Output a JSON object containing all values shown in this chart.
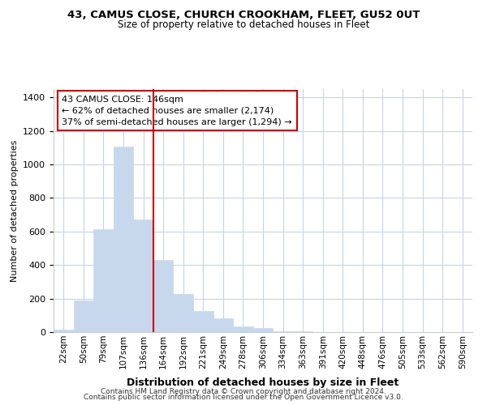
{
  "title": "43, CAMUS CLOSE, CHURCH CROOKHAM, FLEET, GU52 0UT",
  "subtitle": "Size of property relative to detached houses in Fleet",
  "xlabel": "Distribution of detached houses by size in Fleet",
  "ylabel": "Number of detached properties",
  "bar_labels": [
    "22sqm",
    "50sqm",
    "79sqm",
    "107sqm",
    "136sqm",
    "164sqm",
    "192sqm",
    "221sqm",
    "249sqm",
    "278sqm",
    "306sqm",
    "334sqm",
    "363sqm",
    "391sqm",
    "420sqm",
    "448sqm",
    "476sqm",
    "505sqm",
    "533sqm",
    "562sqm",
    "590sqm"
  ],
  "bar_heights": [
    15,
    190,
    615,
    1105,
    670,
    430,
    225,
    125,
    80,
    35,
    25,
    5,
    5,
    0,
    0,
    0,
    0,
    0,
    0,
    0,
    0
  ],
  "bar_color": "#c8d8ec",
  "bar_edge_color": "#c8d8ec",
  "highlight_line_index": 4,
  "highlight_line_color": "#cc0000",
  "annotation_text": "43 CAMUS CLOSE: 146sqm\n← 62% of detached houses are smaller (2,174)\n37% of semi-detached houses are larger (1,294) →",
  "annotation_box_color": "#ffffff",
  "annotation_box_edge_color": "#cc0000",
  "ylim": [
    0,
    1450
  ],
  "yticks": [
    0,
    200,
    400,
    600,
    800,
    1000,
    1200,
    1400
  ],
  "footer1": "Contains HM Land Registry data © Crown copyright and database right 2024.",
  "footer2": "Contains public sector information licensed under the Open Government Licence v3.0.",
  "background_color": "#ffffff",
  "grid_color": "#c8d4e4"
}
